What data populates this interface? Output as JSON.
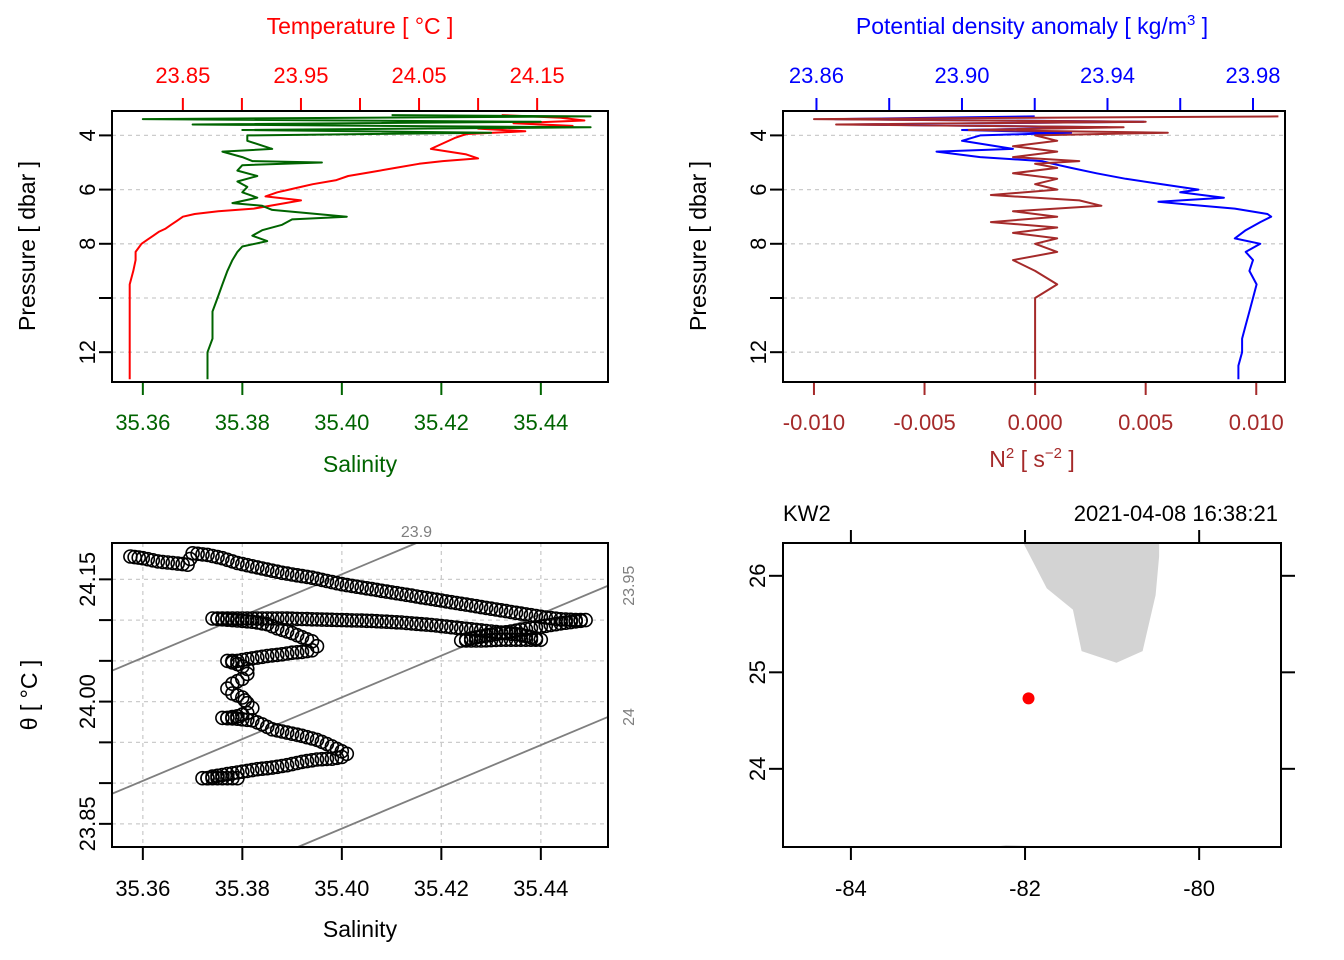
{
  "chart_data": [
    {
      "id": "profile-temp-sal",
      "type": "line",
      "title": "",
      "top_axis": {
        "label": "Temperature [ °C ]",
        "color": "#ff0000",
        "ticks": [
          23.85,
          23.9,
          23.95,
          24.0,
          24.05,
          24.1,
          24.15
        ],
        "tick_labels": [
          "23.85",
          "",
          "23.95",
          "",
          "24.05",
          "",
          "24.15"
        ],
        "range": [
          23.79,
          24.21
        ]
      },
      "bottom_axis": {
        "label": "Salinity",
        "color": "#006400",
        "ticks": [
          35.36,
          35.38,
          35.4,
          35.42,
          35.44
        ],
        "tick_labels": [
          "35.36",
          "35.38",
          "35.40",
          "35.42",
          "35.44"
        ],
        "range": [
          35.3538,
          35.4535
        ]
      },
      "ylabel": "Pressure [ dbar ]",
      "y_ticks": [
        4,
        6,
        8,
        10,
        12
      ],
      "y_tick_labels": [
        "4",
        "6",
        "8",
        "",
        "12"
      ],
      "ylim": [
        13.1,
        3.1
      ],
      "grid": true,
      "series": [
        {
          "name": "Temperature",
          "axis": "top",
          "color": "#ff0000",
          "pressure": [
            3.25,
            3.35,
            3.45,
            3.55,
            3.65,
            3.75,
            3.85,
            3.95,
            4.1,
            4.3,
            4.5,
            4.7,
            4.85,
            4.95,
            5.05,
            5.2,
            5.35,
            5.5,
            5.65,
            5.8,
            5.9,
            6.0,
            6.1,
            6.25,
            6.4,
            6.55,
            6.7,
            6.8,
            6.9,
            7.0,
            7.15,
            7.3,
            7.45,
            7.55,
            7.7,
            7.85,
            8.0,
            8.3,
            8.6,
            9.0,
            9.5,
            10.0,
            10.5,
            11.0,
            11.5,
            12.0,
            12.5,
            13.0
          ],
          "values": [
            24.12,
            24.17,
            24.19,
            24.13,
            24.18,
            24.1,
            24.14,
            24.09,
            24.08,
            24.07,
            24.06,
            24.09,
            24.1,
            24.07,
            24.05,
            24.03,
            24.01,
            23.99,
            23.98,
            23.96,
            23.95,
            23.94,
            23.93,
            23.92,
            23.95,
            23.93,
            23.91,
            23.88,
            23.86,
            23.85,
            23.845,
            23.84,
            23.835,
            23.83,
            23.825,
            23.82,
            23.815,
            23.81,
            23.81,
            23.808,
            23.805,
            23.805,
            23.805,
            23.805,
            23.805,
            23.805,
            23.805,
            23.805
          ]
        },
        {
          "name": "Salinity",
          "axis": "bottom",
          "color": "#006400",
          "pressure": [
            3.25,
            3.3,
            3.4,
            3.5,
            3.6,
            3.7,
            3.8,
            3.9,
            4.0,
            4.2,
            4.5,
            4.6,
            4.8,
            4.95,
            5.0,
            5.1,
            5.3,
            5.5,
            5.7,
            5.9,
            6.1,
            6.3,
            6.5,
            6.6,
            6.75,
            6.9,
            7.0,
            7.1,
            7.3,
            7.5,
            7.7,
            7.9,
            8.1,
            8.3,
            8.6,
            9.0,
            9.5,
            10.0,
            10.5,
            11.0,
            11.5,
            12.0,
            12.5,
            13.0
          ],
          "values": [
            35.41,
            35.45,
            35.36,
            35.44,
            35.37,
            35.45,
            35.38,
            35.43,
            35.381,
            35.381,
            35.386,
            35.376,
            35.38,
            35.382,
            35.396,
            35.38,
            35.379,
            35.383,
            35.379,
            35.381,
            35.38,
            35.383,
            35.378,
            35.384,
            35.386,
            35.395,
            35.401,
            35.39,
            35.388,
            35.384,
            35.382,
            35.385,
            35.38,
            35.379,
            35.378,
            35.377,
            35.376,
            35.375,
            35.374,
            35.374,
            35.374,
            35.373,
            35.373,
            35.373
          ]
        }
      ]
    },
    {
      "id": "profile-density-n2",
      "type": "line",
      "title": "",
      "top_axis": {
        "label": "Potential density anomaly [ kg/m³ ]",
        "color": "#0000ff",
        "ticks": [
          23.86,
          23.88,
          23.9,
          23.92,
          23.94,
          23.96,
          23.98
        ],
        "tick_labels": [
          "23.86",
          "",
          "23.90",
          "",
          "23.94",
          "",
          "23.98"
        ],
        "range": [
          23.8508,
          23.9888
        ]
      },
      "bottom_axis": {
        "label": "N² [ s⁻² ]",
        "color": "#a52a2a",
        "ticks": [
          -0.01,
          -0.005,
          0.0,
          0.005,
          0.01
        ],
        "tick_labels": [
          "-0.010",
          "-0.005",
          "0.000",
          "0.005",
          "0.010"
        ],
        "range": [
          -0.0114,
          0.0113
        ]
      },
      "ylabel": "Pressure [ dbar ]",
      "y_ticks": [
        4,
        6,
        8,
        10,
        12
      ],
      "y_tick_labels": [
        "4",
        "6",
        "8",
        "",
        "12"
      ],
      "ylim": [
        13.1,
        3.1
      ],
      "grid": true,
      "series": [
        {
          "name": "Potential density anomaly",
          "axis": "top",
          "color": "#0000ff",
          "pressure": [
            3.3,
            3.4,
            3.5,
            3.6,
            3.7,
            3.8,
            3.9,
            4.0,
            4.2,
            4.5,
            4.6,
            4.8,
            4.95,
            5.05,
            5.2,
            5.4,
            5.6,
            5.8,
            6.0,
            6.1,
            6.3,
            6.45,
            6.55,
            6.7,
            6.9,
            7.0,
            7.2,
            7.5,
            7.8,
            8.0,
            8.3,
            8.6,
            9.0,
            9.5,
            10.0,
            10.5,
            11.0,
            11.5,
            12.0,
            12.5,
            13.0
          ],
          "values": [
            23.92,
            23.865,
            23.95,
            23.87,
            23.94,
            23.9,
            23.93,
            23.905,
            23.9,
            23.914,
            23.893,
            23.905,
            23.922,
            23.925,
            23.93,
            23.937,
            23.945,
            23.955,
            23.965,
            23.96,
            23.972,
            23.954,
            23.962,
            23.975,
            23.984,
            23.985,
            23.982,
            23.978,
            23.975,
            23.982,
            23.978,
            23.98,
            23.979,
            23.981,
            23.98,
            23.979,
            23.978,
            23.977,
            23.977,
            23.976,
            23.976
          ]
        },
        {
          "name": "N2",
          "axis": "bottom",
          "color": "#a52a2a",
          "pressure": [
            3.3,
            3.4,
            3.5,
            3.6,
            3.7,
            3.8,
            3.9,
            4.0,
            4.2,
            4.4,
            4.6,
            4.8,
            4.95,
            5.05,
            5.2,
            5.4,
            5.6,
            5.8,
            6.0,
            6.2,
            6.4,
            6.6,
            6.8,
            7.0,
            7.2,
            7.4,
            7.6,
            7.8,
            8.0,
            8.3,
            8.6,
            9.0,
            9.5,
            10.0,
            10.5,
            11.0,
            11.5,
            12.0,
            12.5,
            13.0
          ],
          "values": [
            0.011,
            -0.01,
            0.005,
            -0.009,
            0.004,
            -0.003,
            0.006,
            0.0,
            0.001,
            -0.001,
            0.001,
            -0.001,
            0.002,
            0.0,
            0.001,
            -0.001,
            0.001,
            0.0,
            0.001,
            -0.002,
            0.002,
            0.003,
            -0.001,
            0.001,
            -0.002,
            0.001,
            -0.001,
            0.001,
            0.0,
            0.001,
            -0.001,
            0.0,
            0.001,
            0.0,
            0.0,
            0.0,
            0.0,
            0.0,
            0.0,
            0.0
          ]
        }
      ]
    },
    {
      "id": "ts-diagram",
      "type": "scatter",
      "title": "",
      "xlabel": "Salinity",
      "ylabel": "θ [ °C ]",
      "x_ticks": [
        35.36,
        35.38,
        35.4,
        35.42,
        35.44
      ],
      "x_tick_labels": [
        "35.36",
        "35.38",
        "35.40",
        "35.42",
        "35.44"
      ],
      "y_ticks": [
        23.85,
        23.9,
        23.95,
        24.0,
        24.05,
        24.1,
        24.15
      ],
      "y_tick_labels": [
        "23.85",
        "",
        "",
        "24.00",
        "",
        "",
        "24.15"
      ],
      "xlim": [
        35.3538,
        35.4535
      ],
      "ylim": [
        23.8216,
        24.1946
      ],
      "grid": true,
      "isopycnals": [
        {
          "label": "23.9",
          "sigma": 23.9
        },
        {
          "label": "23.95",
          "sigma": 23.95
        },
        {
          "label": "24",
          "sigma": 24.0
        }
      ],
      "points_path": [
        [
          35.3575,
          24.178
        ],
        [
          35.36,
          24.176
        ],
        [
          35.363,
          24.172
        ],
        [
          35.366,
          24.17
        ],
        [
          35.369,
          24.168
        ],
        [
          35.37,
          24.182
        ],
        [
          35.373,
          24.18
        ],
        [
          35.376,
          24.176
        ],
        [
          35.379,
          24.17
        ],
        [
          35.382,
          24.166
        ],
        [
          35.385,
          24.162
        ],
        [
          35.388,
          24.158
        ],
        [
          35.391,
          24.155
        ],
        [
          35.394,
          24.152
        ],
        [
          35.397,
          24.148
        ],
        [
          35.4,
          24.144
        ],
        [
          35.404,
          24.14
        ],
        [
          35.408,
          24.136
        ],
        [
          35.412,
          24.132
        ],
        [
          35.416,
          24.128
        ],
        [
          35.42,
          24.124
        ],
        [
          35.424,
          24.12
        ],
        [
          35.428,
          24.116
        ],
        [
          35.432,
          24.112
        ],
        [
          35.436,
          24.108
        ],
        [
          35.44,
          24.104
        ],
        [
          35.444,
          24.101
        ],
        [
          35.447,
          24.1
        ],
        [
          35.449,
          24.1
        ],
        [
          35.444,
          24.096
        ],
        [
          35.44,
          24.092
        ],
        [
          35.436,
          24.088
        ],
        [
          35.432,
          24.084
        ],
        [
          35.428,
          24.08
        ],
        [
          35.424,
          24.075
        ],
        [
          35.428,
          24.075
        ],
        [
          35.432,
          24.076
        ],
        [
          35.436,
          24.076
        ],
        [
          35.44,
          24.076
        ],
        [
          35.436,
          24.082
        ],
        [
          35.43,
          24.086
        ],
        [
          35.424,
          24.09
        ],
        [
          35.418,
          24.094
        ],
        [
          35.412,
          24.097
        ],
        [
          35.406,
          24.099
        ],
        [
          35.4,
          24.1
        ],
        [
          35.394,
          24.101
        ],
        [
          35.388,
          24.102
        ],
        [
          35.382,
          24.102
        ],
        [
          35.378,
          24.102
        ],
        [
          35.374,
          24.102
        ],
        [
          35.378,
          24.1
        ],
        [
          35.382,
          24.098
        ],
        [
          35.385,
          24.095
        ],
        [
          35.387,
          24.09
        ],
        [
          35.39,
          24.084
        ],
        [
          35.392,
          24.079
        ],
        [
          35.394,
          24.074
        ],
        [
          35.395,
          24.068
        ],
        [
          35.394,
          24.063
        ],
        [
          35.392,
          24.061
        ],
        [
          35.39,
          24.06
        ],
        [
          35.388,
          24.058
        ],
        [
          35.385,
          24.056
        ],
        [
          35.383,
          24.054
        ],
        [
          35.381,
          24.052
        ],
        [
          35.379,
          24.05
        ],
        [
          35.377,
          24.05
        ],
        [
          35.379,
          24.046
        ],
        [
          35.381,
          24.04
        ],
        [
          35.381,
          24.034
        ],
        [
          35.38,
          24.028
        ],
        [
          35.378,
          24.022
        ],
        [
          35.377,
          24.016
        ],
        [
          35.378,
          24.01
        ],
        [
          35.38,
          24.005
        ],
        [
          35.381,
          23.998
        ],
        [
          35.382,
          23.992
        ],
        [
          35.381,
          23.986
        ],
        [
          35.379,
          23.982
        ],
        [
          35.377,
          23.98
        ],
        [
          35.376,
          23.98
        ],
        [
          35.379,
          23.979
        ],
        [
          35.382,
          23.977
        ],
        [
          35.384,
          23.972
        ],
        [
          35.386,
          23.966
        ],
        [
          35.389,
          23.962
        ],
        [
          35.392,
          23.958
        ],
        [
          35.395,
          23.953
        ],
        [
          35.397,
          23.948
        ],
        [
          35.399,
          23.942
        ],
        [
          35.401,
          23.936
        ],
        [
          35.4,
          23.932
        ],
        [
          35.398,
          23.93
        ],
        [
          35.395,
          23.929
        ],
        [
          35.392,
          23.926
        ],
        [
          35.389,
          23.922
        ],
        [
          35.386,
          23.919
        ],
        [
          35.383,
          23.917
        ],
        [
          35.38,
          23.914
        ],
        [
          35.378,
          23.912
        ],
        [
          35.376,
          23.91
        ],
        [
          35.374,
          23.908
        ],
        [
          35.373,
          23.906
        ],
        [
          35.372,
          23.906
        ],
        [
          35.375,
          23.906
        ],
        [
          35.378,
          23.906
        ],
        [
          35.38,
          23.906
        ]
      ]
    },
    {
      "id": "station-map",
      "type": "scatter",
      "title": "KW2",
      "time_label": "2021-04-08 16:38:21",
      "x_ticks": [
        -84,
        -82,
        -80
      ],
      "x_tick_labels": [
        "-84",
        "-82",
        "-80"
      ],
      "y_ticks": [
        24,
        25,
        26
      ],
      "y_tick_labels": [
        "24",
        "25",
        "26"
      ],
      "xlim": [
        -84.78,
        -79.06
      ],
      "ylim": [
        23.19,
        26.34
      ],
      "station": {
        "lon": -81.96,
        "lat": 24.73,
        "color": "#ff0000"
      },
      "land_color": "#d3d3d3",
      "coastline": [
        [
          -82.02,
          26.34
        ],
        [
          -81.75,
          25.87
        ],
        [
          -81.45,
          25.65
        ],
        [
          -81.35,
          25.22
        ],
        [
          -80.95,
          25.1
        ],
        [
          -80.65,
          25.22
        ],
        [
          -80.5,
          25.8
        ],
        [
          -80.46,
          26.2
        ],
        [
          -80.46,
          26.34
        ]
      ],
      "coastline_south": [
        [
          -82.36,
          23.19
        ],
        [
          -82.22,
          23.21
        ],
        [
          -81.95,
          23.2
        ],
        [
          -81.84,
          23.19
        ]
      ]
    }
  ]
}
